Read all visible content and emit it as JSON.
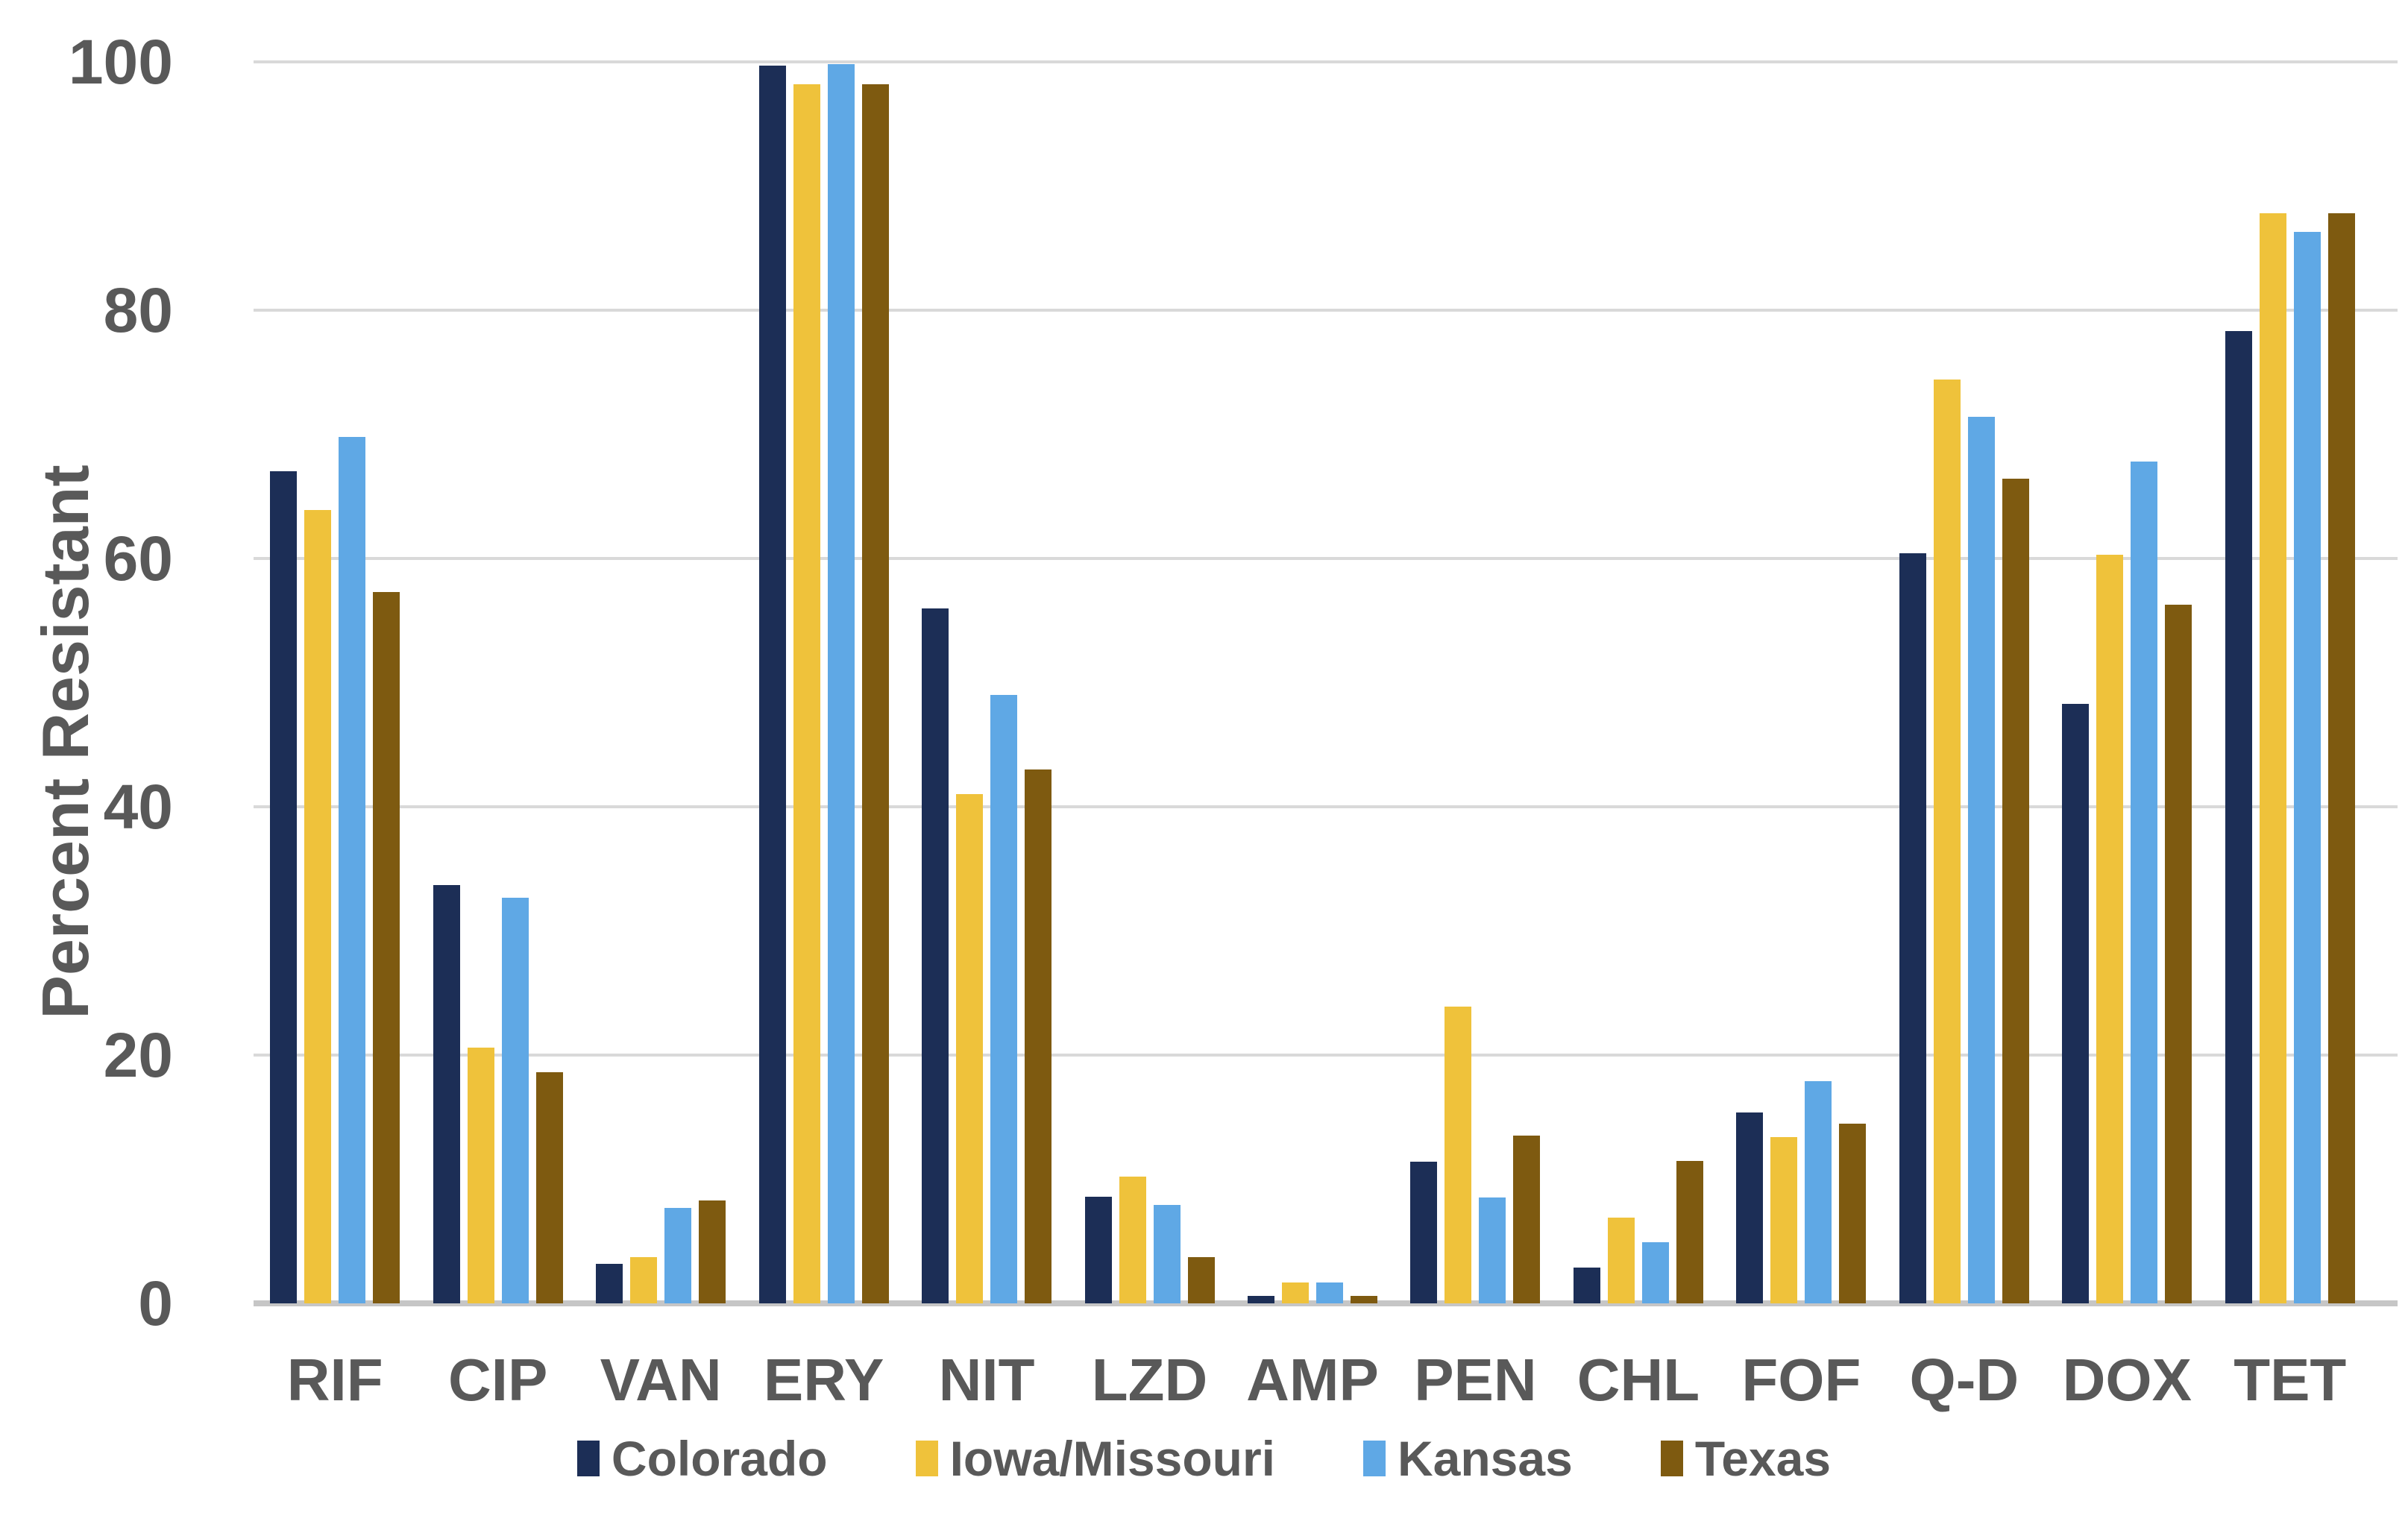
{
  "chart_data": {
    "type": "bar",
    "title": "",
    "xlabel": "",
    "ylabel": "Percent Resistant",
    "ylim": [
      0,
      100
    ],
    "yticks": [
      0,
      20,
      40,
      60,
      80,
      100
    ],
    "grid": true,
    "legend_position": "bottom",
    "categories": [
      "RIF",
      "CIP",
      "VAN",
      "ERY",
      "NIT",
      "LZD",
      "AMP",
      "PEN",
      "CHL",
      "FOF",
      "Q-D",
      "DOX",
      "TET"
    ],
    "series": [
      {
        "name": "Colorado",
        "color": "#1c2e56",
        "values": [
          67.0,
          33.7,
          3.2,
          99.7,
          56.0,
          8.6,
          0.6,
          11.4,
          2.9,
          15.4,
          60.4,
          48.3,
          78.3
        ]
      },
      {
        "name": "Iowa/Missouri",
        "color": "#efc23b",
        "values": [
          63.9,
          20.6,
          3.7,
          98.2,
          41.0,
          10.2,
          1.7,
          23.9,
          6.9,
          13.4,
          74.4,
          60.3,
          87.8
        ]
      },
      {
        "name": "Kansas",
        "color": "#5fa8e5",
        "values": [
          69.8,
          32.7,
          7.7,
          99.8,
          49.0,
          7.9,
          1.7,
          8.5,
          4.9,
          17.9,
          71.4,
          67.8,
          86.3
        ]
      },
      {
        "name": "Texas",
        "color": "#7e5a10",
        "values": [
          57.3,
          18.6,
          8.3,
          98.2,
          43.0,
          3.7,
          0.6,
          13.5,
          11.5,
          14.5,
          66.4,
          56.3,
          87.8
        ]
      }
    ]
  },
  "colors": {
    "background": "#ffffff",
    "gridline": "#d9d9d9",
    "axis_line": "#c6c6c6",
    "text": "#595959"
  }
}
